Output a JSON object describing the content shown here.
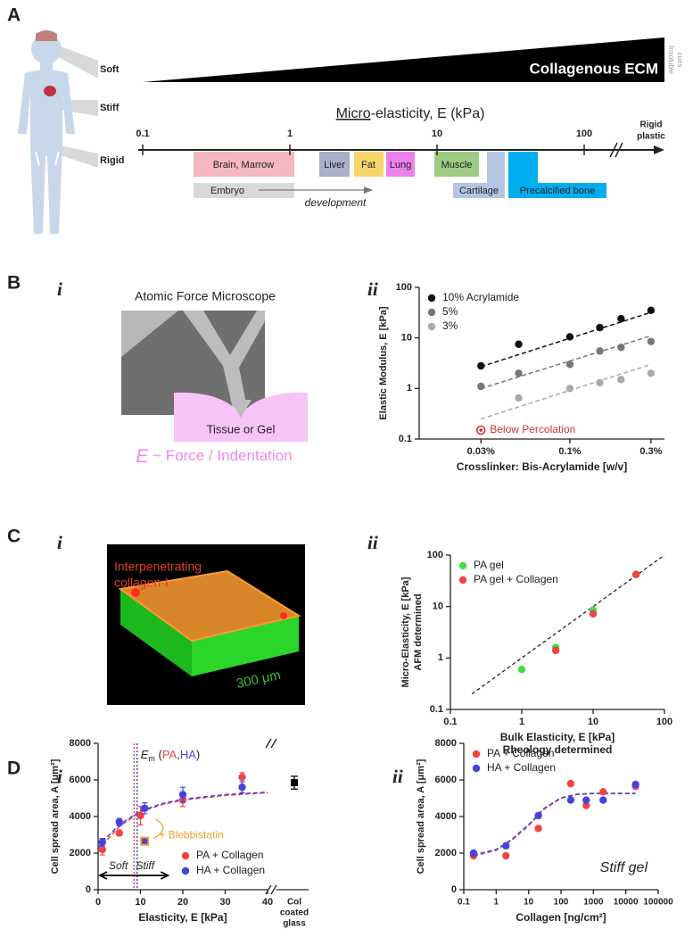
{
  "panel_labels": [
    "A",
    "B",
    "C",
    "D"
  ],
  "sub_labels": [
    "i",
    "ii"
  ],
  "panel_a": {
    "body_labels": [
      "Soft",
      "Stiff",
      "Rigid"
    ],
    "ecm": "Collagenous ECM",
    "cues": [
      "Insoluble",
      "cues"
    ],
    "axis_title_u": "Micro",
    "axis_title_rest": "-elasticity, E (kPa)",
    "ticks": [
      0.1,
      1,
      10,
      100
    ],
    "rigid": [
      "Rigid",
      "plastic"
    ],
    "tissues": [
      "Brain, Marrow",
      "Liver",
      "Fat",
      "Lung",
      "Muscle",
      "Cartilage",
      "Precalcified bone"
    ],
    "embryo": "Embryo",
    "development": "development"
  },
  "panel_b": {
    "title": "Atomic Force Microscope",
    "sample": "Tissue or Gel",
    "eq_symbol": "E",
    "eq_rest": " ~ Force / Indentation"
  },
  "panel_c": {
    "label": [
      "Interpenetrating",
      "collagen-I"
    ],
    "scale": "300 μm"
  },
  "chart_data": [
    {
      "type": "scatter",
      "xlog": true,
      "ylog": true,
      "xlim": [
        0.013,
        0.36
      ],
      "ylim": [
        0.1,
        100
      ],
      "xticks": [
        {
          "value": 0.03,
          "label": "0.03%"
        },
        {
          "value": 0.1,
          "label": "0.1%"
        },
        {
          "value": 0.3,
          "label": "0.3%"
        }
      ],
      "yticks": [
        0.1,
        1,
        10,
        100
      ],
      "ylabel": [
        "Elastic Modulus,  E  [kPa]"
      ],
      "xlabel": [
        "Crosslinker: Bis-Acrylamide  [w/v]"
      ],
      "legend": "upper left",
      "series": [
        {
          "name": "10% Acrylamide",
          "color": "#111111",
          "x": [
            0.03,
            0.05,
            0.1,
            0.15,
            0.2,
            0.3
          ],
          "values": [
            2.8,
            7.5,
            10.5,
            16,
            24,
            35
          ],
          "fit": {
            "x": [
              0.03,
              0.3
            ],
            "y": [
              2.7,
              32
            ]
          }
        },
        {
          "name": "5%",
          "color": "#777777",
          "x": [
            0.03,
            0.05,
            0.1,
            0.15,
            0.2,
            0.3
          ],
          "values": [
            1.1,
            2,
            3,
            5.5,
            6.5,
            8.5
          ],
          "fit": {
            "x": [
              0.03,
              0.3
            ],
            "y": [
              1.0,
              11
            ]
          }
        },
        {
          "name": "3%",
          "color": "#aaaaaa",
          "x": [
            0.03,
            0.05,
            0.1,
            0.15,
            0.2,
            0.3
          ],
          "values": [
            null,
            0.65,
            1,
            1.3,
            1.5,
            2
          ],
          "fit": {
            "x": [
              0.03,
              0.3
            ],
            "y": [
              0.25,
              3
            ]
          }
        }
      ],
      "annotations": [
        {
          "text": "Below Percolation",
          "x": 0.03,
          "y": 0.15,
          "color": "#d03030"
        }
      ]
    },
    {
      "type": "scatter",
      "xlog": true,
      "ylog": true,
      "xlim": [
        0.1,
        100
      ],
      "ylim": [
        0.1,
        100
      ],
      "xticks": [
        0.1,
        1,
        10,
        100
      ],
      "yticks": [
        0.1,
        1,
        10,
        100
      ],
      "ylabel": [
        "Micro-Elasticity,  E [kPa]",
        "AFM determined"
      ],
      "xlabel": [
        "Bulk Elasticity,  E [kPa]",
        "Rheology determined"
      ],
      "legend": "upper left",
      "series": [
        {
          "name": "PA gel",
          "color": "#44dd44",
          "x": [
            1,
            3,
            10,
            40
          ],
          "values": [
            0.6,
            1.6,
            8.5,
            42
          ]
        },
        {
          "name": "PA gel + Collagen",
          "color": "#ee4444",
          "x": [
            3,
            10,
            40
          ],
          "values": [
            1.4,
            7.2,
            42
          ]
        }
      ],
      "reference_line": {
        "x": [
          0.2,
          100
        ],
        "y": [
          0.2,
          100
        ]
      }
    },
    {
      "type": "scatter",
      "xlim": [
        0,
        40
      ],
      "ylim": [
        0,
        8000
      ],
      "xticks": [
        0,
        10,
        20,
        30,
        40
      ],
      "yticks": [
        0,
        2000,
        4000,
        6000,
        8000
      ],
      "ylabel": [
        "Cell spread area, A [μm²]"
      ],
      "xlabel": [
        "Elasticity,  E [kPa]"
      ],
      "legend": "lower right",
      "series": [
        {
          "name": "PA + Collagen",
          "color": "#ee4444",
          "x": [
            1,
            5,
            10,
            20,
            34
          ],
          "values": [
            2200,
            3100,
            4050,
            4900,
            6150
          ],
          "errors": [
            300,
            150,
            500,
            350,
            250
          ],
          "fit": {
            "x": [
              0,
              2,
              5,
              10,
              15,
              20,
              30,
              40
            ],
            "y": [
              2150,
              2700,
              3450,
              4250,
              4650,
              4900,
              5150,
              5300
            ]
          }
        },
        {
          "name": "HA + Collagen",
          "color": "#4444dd",
          "x": [
            1,
            5,
            11,
            20,
            34
          ],
          "values": [
            2600,
            3700,
            4450,
            5200,
            5600
          ],
          "errors": [
            200,
            200,
            300,
            400,
            300
          ],
          "fit": {
            "x": [
              0,
              2,
              5,
              10,
              15,
              20,
              30,
              40
            ],
            "y": [
              2300,
              2850,
              3550,
              4300,
              4700,
              4950,
              5200,
              5330
            ]
          }
        }
      ],
      "em_lines": [
        {
          "value": 8.5,
          "color": "#ee4444"
        },
        {
          "value": 9.2,
          "color": "#4444dd"
        }
      ],
      "em_label": {
        "symbol": "E",
        "sub": "m",
        "open": " (",
        "pa": "PA",
        "comma": ",",
        "ha": "HA",
        "close": ")"
      },
      "blebbistatin": {
        "text": "+ Blebbistatin",
        "x": 11,
        "y": 2650,
        "error": 250,
        "color": "#f0a030"
      },
      "glass": {
        "label": [
          "Col",
          "coated",
          "glass"
        ],
        "value": 5850,
        "error": 350
      },
      "soft_stiff": [
        "Soft",
        "Stiff"
      ]
    },
    {
      "type": "scatter",
      "xlog": true,
      "xlim": [
        0.1,
        100000
      ],
      "ylim": [
        0,
        8000
      ],
      "xticks": [
        0.1,
        1,
        10,
        100,
        1000,
        10000,
        100000
      ],
      "yticks": [
        0,
        2000,
        4000,
        6000,
        8000
      ],
      "ylabel": [
        "Cell spread area, A [μm²]"
      ],
      "xlabel": [
        "Collagen  [ng/cm²]"
      ],
      "legend": "upper left",
      "series": [
        {
          "name": "PA + Collagen",
          "color": "#ee4444",
          "x": [
            0.2,
            2,
            20,
            200,
            600,
            2000,
            20000
          ],
          "values": [
            1850,
            1850,
            3350,
            5800,
            4600,
            5350,
            5650
          ],
          "fit": {
            "x": [
              0.2,
              1,
              3,
              10,
              30,
              100,
              300,
              1000,
              20000
            ],
            "y": [
              1850,
              2150,
              2700,
              3500,
              4400,
              5000,
              5200,
              5250,
              5250
            ]
          }
        },
        {
          "name": "HA + Collagen",
          "color": "#4444dd",
          "x": [
            0.2,
            2,
            20,
            200,
            600,
            2000,
            20000
          ],
          "values": [
            2000,
            2400,
            4050,
            4900,
            4900,
            4900,
            5750
          ],
          "fit": {
            "x": [
              0.2,
              1,
              3,
              10,
              30,
              100,
              300,
              1000,
              20000
            ],
            "y": [
              1900,
              2200,
              2750,
              3550,
              4450,
              5020,
              5220,
              5270,
              5270
            ]
          }
        }
      ],
      "annotation_text": "Stiff gel"
    }
  ]
}
